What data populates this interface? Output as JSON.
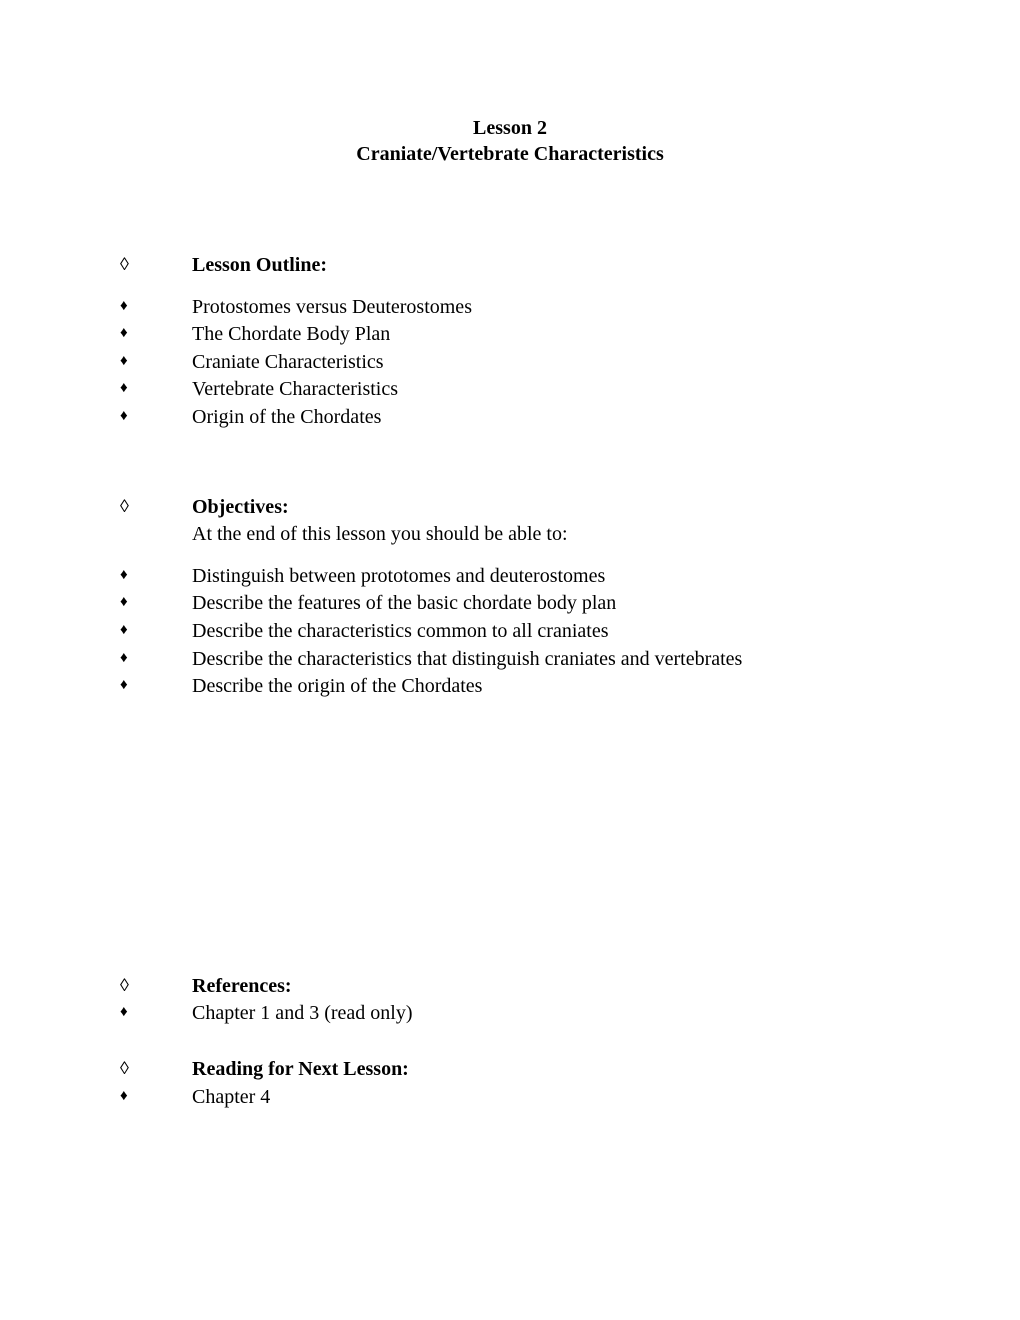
{
  "title": {
    "line1": "Lesson 2",
    "line2": "Craniate/Vertebrate Characteristics"
  },
  "sections": {
    "outline": {
      "heading": "Lesson Outline:",
      "items": [
        "Protostomes versus Deuterostomes",
        "The Chordate Body Plan",
        "Craniate Characteristics",
        "Vertebrate Characteristics",
        "Origin of the Chordates"
      ]
    },
    "objectives": {
      "heading": "Objectives:",
      "subheading": "At the end of this lesson you should be able to:",
      "items": [
        "Distinguish between prototomes and deuterostomes",
        "Describe the features of the basic chordate body plan",
        "Describe the characteristics common to all craniates",
        "Describe the characteristics that distinguish craniates and vertebrates",
        "Describe the origin of the Chordates"
      ]
    },
    "references": {
      "heading": "References:",
      "items": [
        "Chapter 1 and 3 (read only)"
      ]
    },
    "reading": {
      "heading": "Reading for Next Lesson:",
      "items": [
        "Chapter 4"
      ]
    }
  },
  "bullets": {
    "open_diamond": "◊",
    "filled_diamond": "♦"
  }
}
